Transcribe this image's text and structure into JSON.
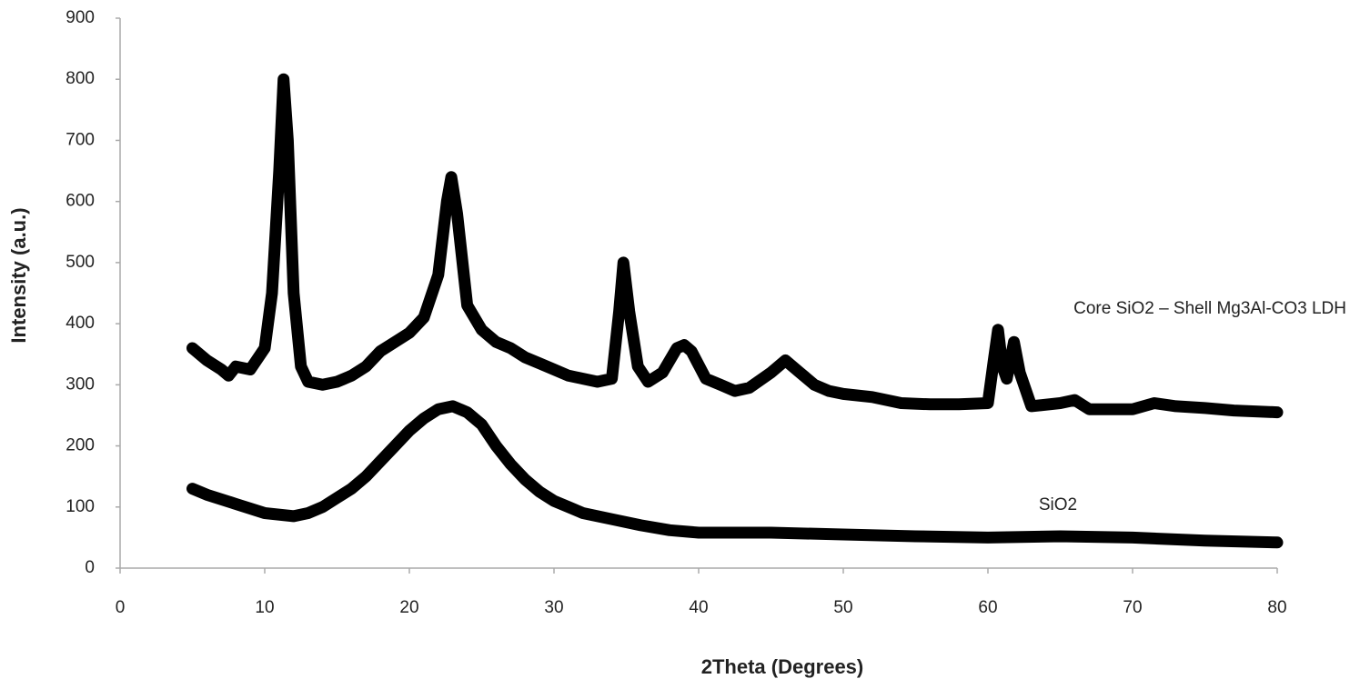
{
  "chart_data": {
    "type": "line",
    "x_label": "2Theta (Degrees)",
    "y_label": "Intensity (a.u.)",
    "xlim": [
      0,
      80
    ],
    "xticks": [
      0,
      10,
      20,
      30,
      40,
      50,
      60,
      70,
      80
    ],
    "ylim": [
      0,
      900
    ],
    "yticks": [
      0,
      100,
      200,
      300,
      400,
      500,
      600,
      700,
      800,
      900
    ],
    "grid": false,
    "series": [
      {
        "name": "Core SiO2 – Shell Mg3Al-CO3 LDH",
        "color": "#000000",
        "x": [
          5,
          6,
          7,
          7.5,
          8,
          9,
          10,
          10.5,
          11,
          11.3,
          11.6,
          12,
          12.5,
          13,
          14,
          15,
          16,
          17,
          18,
          19,
          20,
          21,
          22,
          22.6,
          22.9,
          23.3,
          24,
          25,
          26,
          27,
          28,
          29,
          30,
          31,
          32,
          33,
          34,
          34.5,
          34.8,
          35.2,
          35.8,
          36.5,
          37.5,
          38.5,
          39,
          39.5,
          40.5,
          41.5,
          42.5,
          43.5,
          45,
          46,
          47,
          48,
          49,
          50,
          52,
          54,
          56,
          58,
          60,
          60.4,
          60.7,
          61,
          61.3,
          61.8,
          62.2,
          63,
          65,
          66,
          67,
          70,
          71.5,
          73,
          75,
          77,
          80
        ],
        "values": [
          360,
          340,
          325,
          315,
          330,
          325,
          360,
          450,
          650,
          800,
          700,
          450,
          330,
          305,
          300,
          305,
          315,
          330,
          355,
          370,
          385,
          410,
          480,
          600,
          640,
          580,
          430,
          390,
          370,
          360,
          345,
          335,
          325,
          315,
          310,
          305,
          310,
          420,
          500,
          420,
          330,
          305,
          320,
          360,
          365,
          355,
          310,
          300,
          290,
          295,
          320,
          340,
          320,
          300,
          290,
          285,
          280,
          270,
          268,
          268,
          270,
          340,
          390,
          330,
          310,
          370,
          320,
          265,
          270,
          275,
          260,
          260,
          270,
          265,
          262,
          258,
          255
        ]
      },
      {
        "name": "SiO2",
        "color": "#000000",
        "x": [
          5,
          6,
          8,
          10,
          12,
          13,
          14,
          15,
          16,
          17,
          18,
          19,
          20,
          21,
          22,
          23,
          24,
          25,
          26,
          27,
          28,
          29,
          30,
          31,
          32,
          34,
          36,
          38,
          40,
          45,
          50,
          55,
          60,
          65,
          70,
          75,
          80
        ],
        "values": [
          130,
          120,
          105,
          90,
          85,
          90,
          100,
          115,
          130,
          150,
          175,
          200,
          225,
          245,
          260,
          265,
          255,
          235,
          200,
          170,
          145,
          125,
          110,
          100,
          90,
          80,
          70,
          62,
          58,
          58,
          55,
          52,
          50,
          52,
          50,
          45,
          42
        ]
      }
    ]
  }
}
